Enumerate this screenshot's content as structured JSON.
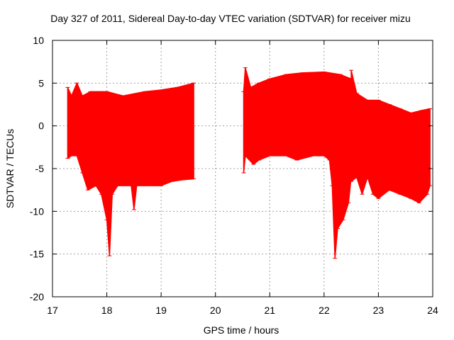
{
  "chart_data": {
    "type": "area",
    "title": "Day 327 of 2011, Sidereal Day-to-day VTEC variation (SDTVAR) for receiver mizu",
    "xlabel": "GPS time / hours",
    "ylabel": "SDTVAR / TECUs",
    "xlim": [
      17,
      24
    ],
    "ylim": [
      -20,
      10
    ],
    "x_ticks": [
      17,
      18,
      19,
      20,
      21,
      22,
      23,
      24
    ],
    "y_ticks": [
      -20,
      -15,
      -10,
      -5,
      0,
      5,
      10
    ],
    "grid": true,
    "series_color": "#ff0000",
    "series": [
      {
        "name": "segment 1",
        "upper": [
          [
            17.28,
            4.5
          ],
          [
            17.35,
            3.5
          ],
          [
            17.45,
            5.0
          ],
          [
            17.55,
            3.5
          ],
          [
            17.7,
            4.0
          ],
          [
            18.0,
            4.0
          ],
          [
            18.3,
            3.5
          ],
          [
            18.7,
            4.0
          ],
          [
            19.0,
            4.2
          ],
          [
            19.3,
            4.5
          ],
          [
            19.6,
            5.0
          ]
        ],
        "lower": [
          [
            17.28,
            -3.8
          ],
          [
            17.35,
            -3.5
          ],
          [
            17.45,
            -3.5
          ],
          [
            17.55,
            -5.5
          ],
          [
            17.65,
            -7.5
          ],
          [
            17.8,
            -7.0
          ],
          [
            17.9,
            -8.0
          ],
          [
            18.0,
            -11.0
          ],
          [
            18.05,
            -15.2
          ],
          [
            18.1,
            -8.0
          ],
          [
            18.2,
            -7.0
          ],
          [
            18.35,
            -7.0
          ],
          [
            18.45,
            -7.0
          ],
          [
            18.5,
            -9.8
          ],
          [
            18.55,
            -7.0
          ],
          [
            18.7,
            -7.0
          ],
          [
            18.9,
            -7.0
          ],
          [
            19.0,
            -7.0
          ],
          [
            19.2,
            -6.5
          ],
          [
            19.4,
            -6.3
          ],
          [
            19.6,
            -6.2
          ]
        ]
      },
      {
        "name": "segment 2",
        "upper": [
          [
            20.52,
            4.0
          ],
          [
            20.55,
            6.8
          ],
          [
            20.65,
            4.5
          ],
          [
            20.8,
            5.0
          ],
          [
            21.0,
            5.5
          ],
          [
            21.3,
            6.0
          ],
          [
            21.6,
            6.2
          ],
          [
            22.0,
            6.3
          ],
          [
            22.3,
            6.0
          ],
          [
            22.5,
            5.5
          ]
        ],
        "lower": [
          [
            20.52,
            -5.5
          ],
          [
            20.55,
            -3.5
          ],
          [
            20.7,
            -4.5
          ],
          [
            20.8,
            -4.0
          ],
          [
            21.0,
            -3.5
          ],
          [
            21.3,
            -3.5
          ],
          [
            21.5,
            -4.0
          ],
          [
            21.8,
            -3.5
          ],
          [
            22.0,
            -3.5
          ],
          [
            22.1,
            -4.0
          ],
          [
            22.15,
            -7.0
          ],
          [
            22.2,
            -15.5
          ],
          [
            22.25,
            -12.0
          ],
          [
            22.35,
            -11.0
          ],
          [
            22.45,
            -9.0
          ],
          [
            22.5,
            -6.0
          ]
        ]
      },
      {
        "name": "segment 3",
        "upper": [
          [
            22.5,
            6.5
          ],
          [
            22.6,
            3.8
          ],
          [
            22.8,
            3.0
          ],
          [
            23.0,
            3.0
          ],
          [
            23.2,
            2.5
          ],
          [
            23.4,
            2.0
          ],
          [
            23.6,
            1.5
          ],
          [
            23.8,
            1.8
          ],
          [
            23.95,
            2.0
          ]
        ],
        "lower": [
          [
            22.5,
            -6.5
          ],
          [
            22.6,
            -6.0
          ],
          [
            22.7,
            -8.0
          ],
          [
            22.8,
            -6.0
          ],
          [
            22.9,
            -8.0
          ],
          [
            23.0,
            -8.5
          ],
          [
            23.2,
            -7.5
          ],
          [
            23.4,
            -8.0
          ],
          [
            23.6,
            -8.5
          ],
          [
            23.75,
            -9.0
          ],
          [
            23.9,
            -8.0
          ],
          [
            23.95,
            -7.0
          ]
        ]
      }
    ]
  }
}
